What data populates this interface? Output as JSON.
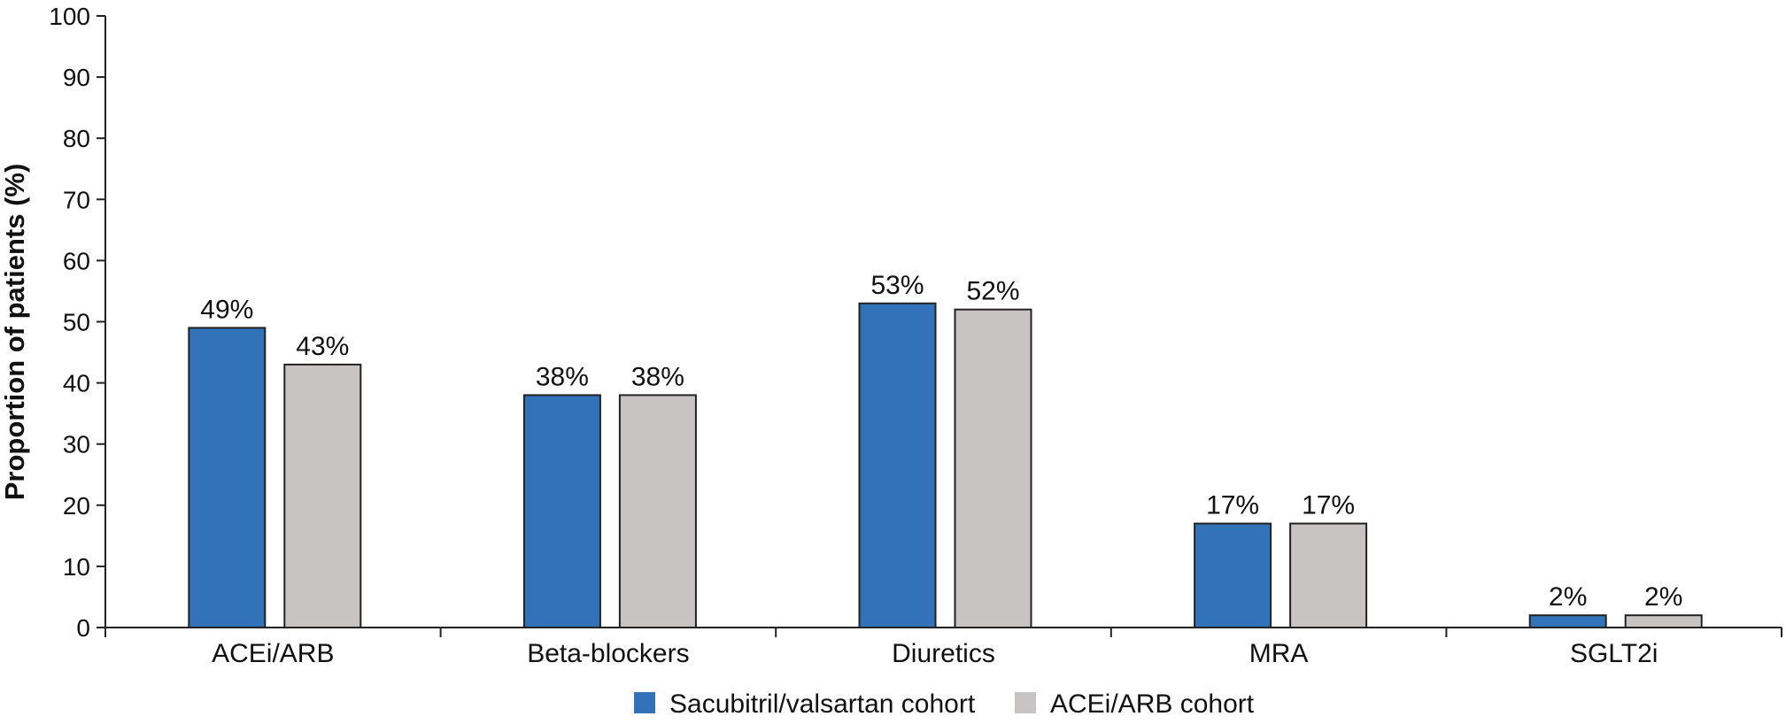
{
  "chart_data": {
    "type": "bar",
    "categories": [
      "ACEi/ARB",
      "Beta-blockers",
      "Diuretics",
      "MRA",
      "SGLT2i"
    ],
    "series": [
      {
        "name": "Sacubitril/valsartan cohort",
        "color": "#3272b8",
        "values": [
          49,
          38,
          53,
          17,
          2
        ],
        "labels": [
          "49%",
          "38%",
          "53%",
          "17%",
          "2%"
        ]
      },
      {
        "name": "ACEi/ARB cohort",
        "color": "#c8c4c3",
        "values": [
          43,
          38,
          52,
          17,
          2
        ],
        "labels": [
          "43%",
          "38%",
          "52%",
          "17%",
          "2%"
        ]
      }
    ],
    "title": "",
    "xlabel": "",
    "ylabel": "Proportion of patients (%)",
    "ylim": [
      0,
      100
    ],
    "yticks": [
      "0",
      "10",
      "20",
      "30",
      "40",
      "50",
      "60",
      "70",
      "80",
      "90",
      "100"
    ],
    "grid": false,
    "legend": "bottom-center"
  }
}
